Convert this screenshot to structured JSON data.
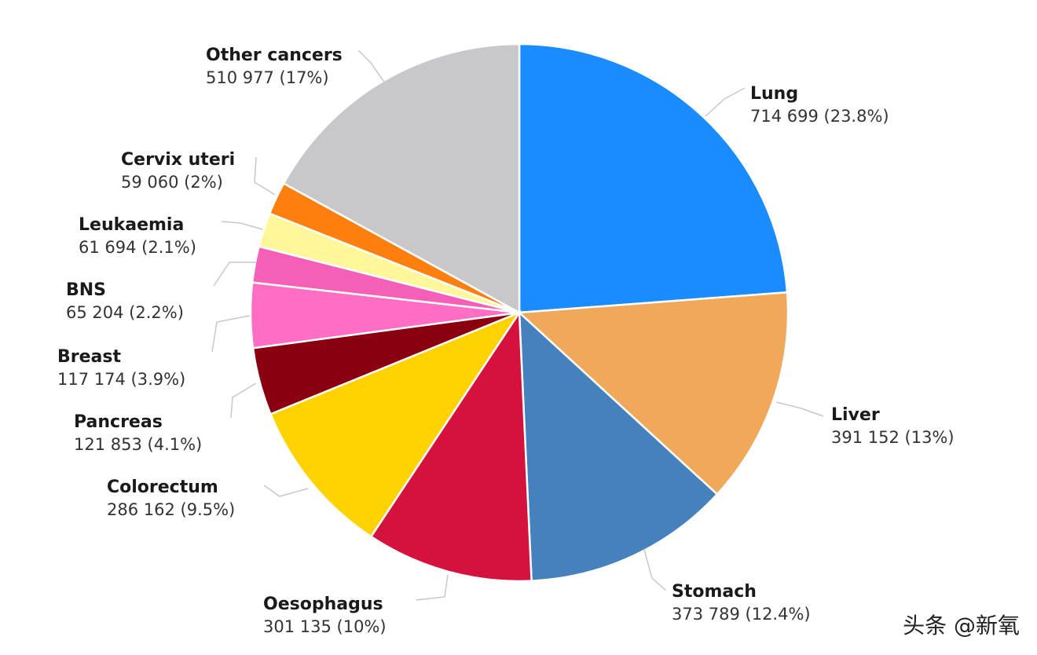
{
  "chart_data": {
    "type": "pie",
    "title": "",
    "slices": [
      {
        "name": "Lung",
        "value": 714699,
        "value_label": "714 699",
        "percent": "23.8%",
        "color": "#1a8cff"
      },
      {
        "name": "Liver",
        "value": 391152,
        "value_label": "391 152",
        "percent": "13%",
        "color": "#f0a85a"
      },
      {
        "name": "Stomach",
        "value": 373789,
        "value_label": "373 789",
        "percent": "12.4%",
        "color": "#4581bc"
      },
      {
        "name": "Oesophagus",
        "value": 301135,
        "value_label": "301 135",
        "percent": "10%",
        "color": "#d5123e"
      },
      {
        "name": "Colorectum",
        "value": 286162,
        "value_label": "286 162",
        "percent": "9.5%",
        "color": "#ffd200"
      },
      {
        "name": "Pancreas",
        "value": 121853,
        "value_label": "121 853",
        "percent": "4.1%",
        "color": "#8b0010"
      },
      {
        "name": "Breast",
        "value": 117174,
        "value_label": "117 174",
        "percent": "3.9%",
        "color": "#ff6ec4"
      },
      {
        "name": "BNS",
        "value": 65204,
        "value_label": "65 204",
        "percent": "2.2%",
        "color": "#f55fb8"
      },
      {
        "name": "Leukaemia",
        "value": 61694,
        "value_label": "61 694",
        "percent": "2.1%",
        "color": "#fff79a"
      },
      {
        "name": "Cervix uteri",
        "value": 59060,
        "value_label": "59 060",
        "percent": "2%",
        "color": "#ff7f0e"
      },
      {
        "name": "Other cancers",
        "value": 510977,
        "value_label": "510 977",
        "percent": "17%",
        "color": "#c8c8cc"
      }
    ]
  },
  "watermark": "头条 @新氧"
}
